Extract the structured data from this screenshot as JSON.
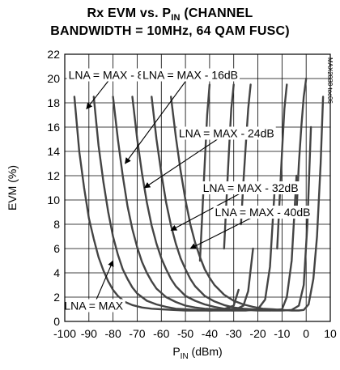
{
  "chart_data": {
    "type": "line",
    "title_line1_pre": "Rx EVM vs. P",
    "title_line1_sub": "IN",
    "title_line1_post": " (CHANNEL",
    "title_line2": "BANDWIDTH = 10MHz, 64 QAM FUSC)",
    "ylabel": "EVM (%)",
    "xlabel_pre": "P",
    "xlabel_sub": "IN",
    "xlabel_post": " (dBm)",
    "xlim": [
      -100,
      10
    ],
    "ylim": [
      0,
      22
    ],
    "xticks": [
      "-100",
      "-90",
      "-80",
      "-70",
      "-60",
      "-50",
      "-40",
      "-30",
      "-20",
      "-10",
      "0",
      "10"
    ],
    "yticks": [
      "0",
      "2",
      "4",
      "6",
      "8",
      "10",
      "12",
      "14",
      "16",
      "18",
      "20",
      "22"
    ],
    "grid": true,
    "part_code": "MAX2838 toc06",
    "annotations": [
      {
        "text": "LNA = MAX - 8dB",
        "arrow_to": [
          -91,
          17.5
        ],
        "anchor": [
          -80,
          20.3
        ]
      },
      {
        "text": "LNA = MAX - 16dB",
        "arrow_to": [
          -75,
          13
        ],
        "anchor": [
          -48,
          20.3
        ]
      },
      {
        "text": "LNA = MAX - 24dB",
        "arrow_to": [
          -67,
          11
        ],
        "anchor": [
          -33,
          15.5
        ]
      },
      {
        "text": "LNA = MAX - 32dB",
        "arrow_to": [
          -56,
          7.5
        ],
        "anchor": [
          -23,
          11
        ]
      },
      {
        "text": "LNA = MAX - 40dB",
        "arrow_to": [
          -48,
          6
        ],
        "anchor": [
          -18,
          9
        ]
      },
      {
        "text": "LNA = MAX",
        "arrow_to": [
          -80,
          5
        ],
        "anchor": [
          -88,
          1.3
        ]
      }
    ],
    "series": [
      {
        "name": "LNA = MAX",
        "color": "#444444",
        "x": [
          -96,
          -94,
          -92,
          -90,
          -88,
          -86,
          -84,
          -82,
          -80,
          -78,
          -75,
          -72,
          -68,
          -64,
          -60,
          -55,
          -50,
          -45,
          -40,
          -35,
          -30,
          -28
        ],
        "y": [
          18.5,
          14,
          11,
          8.5,
          6.8,
          5.3,
          4.2,
          3.3,
          2.6,
          2.1,
          1.6,
          1.35,
          1.15,
          1.05,
          1.0,
          0.95,
          0.9,
          0.9,
          0.9,
          0.95,
          1.3,
          2.6
        ]
      },
      {
        "name": "LNA = MAX - 8dB",
        "color": "#444444",
        "x": [
          -88,
          -86,
          -84,
          -82,
          -80,
          -78,
          -76,
          -74,
          -72,
          -70,
          -66,
          -62,
          -58,
          -54,
          -50,
          -45,
          -40,
          -35,
          -30,
          -26,
          -24,
          -22
        ],
        "y": [
          18.5,
          14.5,
          11.5,
          9,
          7,
          5.5,
          4.3,
          3.5,
          2.8,
          2.3,
          1.7,
          1.4,
          1.2,
          1.05,
          1.0,
          0.95,
          0.9,
          0.9,
          0.9,
          1.3,
          2.5,
          6
        ]
      },
      {
        "name": "LNA = MAX - 16dB",
        "color": "#444444",
        "x": [
          -80,
          -78,
          -76,
          -74,
          -72,
          -70,
          -68,
          -66,
          -64,
          -62,
          -58,
          -54,
          -50,
          -46,
          -42,
          -38,
          -34,
          -30,
          -25,
          -20,
          -17,
          -15,
          -13
        ],
        "y": [
          18.5,
          15,
          12,
          9.5,
          7.6,
          6.1,
          4.9,
          4,
          3.3,
          2.7,
          2.0,
          1.6,
          1.3,
          1.15,
          1.05,
          1.0,
          0.95,
          0.9,
          0.9,
          1.0,
          1.8,
          4.5,
          11
        ]
      },
      {
        "name": "LNA = MAX - 24dB",
        "color": "#444444",
        "x": [
          -72,
          -70,
          -68,
          -66,
          -64,
          -62,
          -60,
          -58,
          -56,
          -54,
          -50,
          -46,
          -42,
          -38,
          -34,
          -30,
          -25,
          -20,
          -15,
          -10,
          -8,
          -6,
          -4
        ],
        "y": [
          18.5,
          15,
          12.2,
          9.8,
          7.9,
          6.4,
          5.2,
          4.3,
          3.5,
          2.9,
          2.1,
          1.7,
          1.4,
          1.2,
          1.05,
          1.0,
          0.95,
          0.9,
          0.9,
          1.0,
          2,
          5,
          12
        ]
      },
      {
        "name": "LNA = MAX - 32dB",
        "color": "#444444",
        "x": [
          -64,
          -62,
          -60,
          -58,
          -56,
          -54,
          -52,
          -50,
          -48,
          -46,
          -42,
          -38,
          -34,
          -30,
          -26,
          -22,
          -18,
          -14,
          -10,
          -6,
          -3,
          -1,
          0.5,
          2
        ],
        "y": [
          18.5,
          15,
          12.2,
          9.8,
          7.9,
          6.4,
          5.2,
          4.3,
          3.5,
          2.9,
          2.1,
          1.65,
          1.35,
          1.15,
          1.05,
          1.0,
          0.95,
          0.9,
          0.9,
          0.95,
          1.3,
          3,
          8,
          16
        ]
      },
      {
        "name": "LNA = MAX - 40dB",
        "color": "#444444",
        "x": [
          -56,
          -54,
          -52,
          -50,
          -48,
          -46,
          -44,
          -42,
          -40,
          -38,
          -34,
          -30,
          -26,
          -22,
          -18,
          -14,
          -10,
          -6,
          -3,
          -1,
          1,
          3,
          4.5,
          6,
          7
        ],
        "y": [
          18.5,
          15.2,
          12.4,
          10,
          8,
          6.5,
          5.3,
          4.3,
          3.6,
          3.0,
          2.2,
          1.7,
          1.4,
          1.2,
          1.05,
          1.0,
          0.95,
          0.9,
          0.9,
          0.95,
          1.4,
          3.5,
          7,
          13,
          18.5
        ]
      },
      {
        "name": "",
        "color": "#444444",
        "x": [
          -44,
          -43,
          -42,
          -41,
          -40
        ],
        "y": [
          5,
          9,
          13,
          17,
          19.5
        ]
      },
      {
        "name": "",
        "color": "#444444",
        "x": [
          -34,
          -33,
          -32,
          -31,
          -30
        ],
        "y": [
          6,
          10,
          14,
          17.5,
          19.5
        ]
      },
      {
        "name": "",
        "color": "#444444",
        "x": [
          -27,
          -26,
          -25,
          -24,
          -23
        ],
        "y": [
          8,
          11.5,
          14.5,
          17.5,
          19.5
        ]
      },
      {
        "name": "",
        "color": "#444444",
        "x": [
          -12,
          -11,
          -10,
          -9,
          -8
        ],
        "y": [
          6,
          10,
          14,
          17.5,
          19.5
        ]
      },
      {
        "name": "",
        "color": "#444444",
        "x": [
          -4,
          -3,
          -2,
          -1,
          0
        ],
        "y": [
          9,
          13,
          16,
          18.5,
          20
        ]
      }
    ]
  }
}
